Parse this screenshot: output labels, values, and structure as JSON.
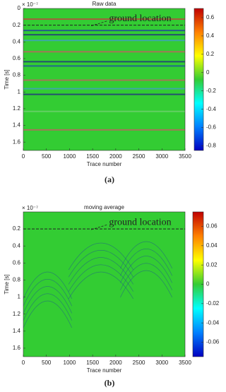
{
  "chart_data": [
    {
      "type": "heatmap",
      "title": "Raw data",
      "xlabel": "Trace number",
      "ylabel": "Time [s]",
      "y_multiplier": "× 10⁻⁷",
      "xlim": [
        0,
        3500
      ],
      "xticks": [
        0,
        500,
        1000,
        1500,
        2000,
        2500,
        3000,
        3500
      ],
      "ylim": [
        0,
        1.7
      ],
      "yticks": [
        0,
        0.2,
        0.4,
        0.6,
        0.8,
        1,
        1.2,
        1.4,
        1.6
      ],
      "y_reversed": true,
      "colormap": [
        "#0000c0",
        "#0080ff",
        "#00ffff",
        "#33cc33",
        "#ffff00",
        "#ff8000",
        "#c00000"
      ],
      "colorbar_lim": [
        -0.85,
        0.7
      ],
      "colorbar_ticks": [
        -0.8,
        -0.6,
        -0.4,
        -0.2,
        0,
        0.2,
        0.4,
        0.6
      ],
      "annotation": {
        "text": "ground location",
        "y": 0.2
      },
      "panel_label": "(a)"
    },
    {
      "type": "heatmap",
      "title": "moving average",
      "xlabel": "Trace number",
      "ylabel": "Time [s]",
      "y_multiplier": "× 10⁻⁷",
      "xlim": [
        0,
        3500
      ],
      "xticks": [
        0,
        500,
        1000,
        1500,
        2000,
        2500,
        3000,
        3500
      ],
      "ylim": [
        0,
        1.7
      ],
      "yticks": [
        0.2,
        0.4,
        0.6,
        0.8,
        1,
        1.2,
        1.4,
        1.6
      ],
      "y_reversed": true,
      "colormap": [
        "#0000c0",
        "#0080ff",
        "#00ffff",
        "#33cc33",
        "#ffff00",
        "#ff8000",
        "#c00000"
      ],
      "colorbar_lim": [
        -0.075,
        0.075
      ],
      "colorbar_ticks": [
        -0.06,
        -0.04,
        -0.02,
        0,
        0.02,
        0.04,
        0.06
      ],
      "annotation": {
        "text": "ground location",
        "y": 0.2
      },
      "panel_label": "(b)"
    }
  ]
}
